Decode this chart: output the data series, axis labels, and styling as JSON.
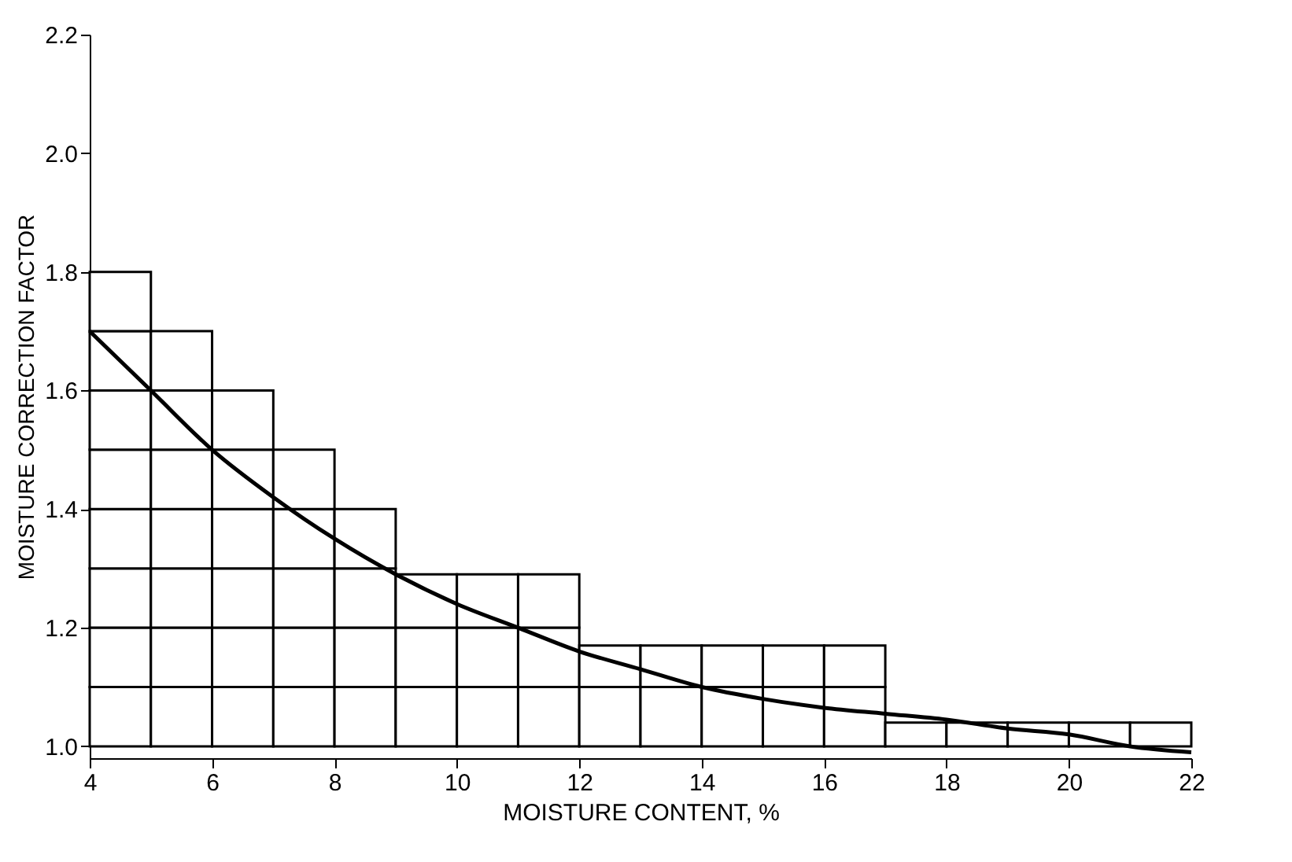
{
  "chart_data": {
    "type": "line",
    "xlabel": "MOISTURE CONTENT, %",
    "ylabel": "MOISTURE CORRECTION FACTOR",
    "xlim": [
      4,
      22
    ],
    "xticks": [
      4,
      6,
      8,
      10,
      12,
      14,
      16,
      18,
      20,
      22
    ],
    "ylim": [
      0.98,
      2.2
    ],
    "yticks": [
      {
        "value": 1,
        "label": "1.0"
      },
      1.2,
      1.4,
      1.6,
      1.8,
      {
        "value": 2,
        "label": "2.0"
      },
      2.2
    ],
    "series": [
      {
        "type": "bar",
        "color": "#ffffff",
        "x": [
          4.5,
          5.5,
          6.5,
          7.5,
          8.5,
          9.5,
          10.5,
          11.5,
          12.5,
          13.5,
          14.5,
          15.5,
          16.5,
          17.5,
          18.5,
          19.5,
          20.5,
          21.5
        ],
        "base": [
          1,
          1,
          1,
          1,
          1,
          1,
          1,
          1,
          1,
          1,
          1,
          1,
          1,
          1,
          1,
          1,
          1,
          1
        ],
        "values": [
          0.1,
          0.1,
          0.1,
          0.1,
          0.1,
          0.1,
          0.1,
          0.1,
          0.1,
          0.1,
          0.1,
          0.1,
          0.1,
          0.04,
          0.04,
          0.04,
          0.04,
          0.04
        ]
      },
      {
        "type": "bar",
        "color": "#ffffff",
        "x": [
          4.5,
          5.5,
          6.5,
          7.5,
          8.5,
          9.5,
          10.5,
          11.5,
          12.5,
          13.5,
          14.5,
          15.5,
          16.5
        ],
        "base": [
          1.1,
          1.1,
          1.1,
          1.1,
          1.1,
          1.1,
          1.1,
          1.1,
          1.1,
          1.1,
          1.1,
          1.1,
          1.1
        ],
        "values": [
          0.1,
          0.1,
          0.1,
          0.1,
          0.1,
          0.1,
          0.1,
          0.1,
          0.07,
          0.07,
          0.07,
          0.07,
          0.07
        ]
      },
      {
        "type": "bar",
        "color": "#ffffff",
        "x": [
          4.5,
          5.5,
          6.5,
          7.5,
          8.5,
          9.5,
          10.5,
          11.5
        ],
        "base": [
          1.2,
          1.2,
          1.2,
          1.2,
          1.2,
          1.2,
          1.2,
          1.2
        ],
        "values": [
          0.1,
          0.1,
          0.1,
          0.1,
          0.1,
          0.09,
          0.09,
          0.09
        ]
      },
      {
        "type": "bar",
        "color": "#ffffff",
        "x": [
          4.5,
          5.5,
          6.5,
          7.5,
          8.5
        ],
        "base": [
          1.3,
          1.3,
          1.3,
          1.3,
          1.3
        ],
        "values": [
          0.1,
          0.1,
          0.1,
          0.1,
          0.1
        ]
      },
      {
        "type": "bar",
        "color": "#ffffff",
        "x": [
          4.5,
          5.5,
          6.5,
          7.5
        ],
        "base": [
          1.4,
          1.4,
          1.4,
          1.4
        ],
        "values": [
          0.1,
          0.1,
          0.1,
          0.1
        ]
      },
      {
        "type": "bar",
        "color": "#ffffff",
        "x": [
          4.5,
          5.5,
          6.5
        ],
        "base": [
          1.5,
          1.5,
          1.5
        ],
        "values": [
          0.1,
          0.1,
          0.1
        ]
      },
      {
        "type": "bar",
        "color": "#ffffff",
        "x": [
          4.5,
          5.5
        ],
        "base": [
          1.6,
          1.6
        ],
        "values": [
          0.1,
          0.1
        ]
      },
      {
        "type": "bar",
        "color": "#ffffff",
        "x": [
          4.5
        ],
        "base": [
          1.7
        ],
        "values": [
          0.1
        ]
      },
      {
        "color": "#000000",
        "x": [
          4,
          5,
          6,
          7,
          8,
          9,
          10,
          11,
          12,
          13,
          14,
          15,
          16,
          17,
          18,
          19,
          20,
          21,
          22
        ],
        "values": [
          1.7,
          1.6,
          1.5,
          1.42,
          1.35,
          1.29,
          1.24,
          1.2,
          1.16,
          1.13,
          1.1,
          1.08,
          1.065,
          1.055,
          1.045,
          1.03,
          1.02,
          1.0,
          0.99
        ]
      }
    ]
  }
}
